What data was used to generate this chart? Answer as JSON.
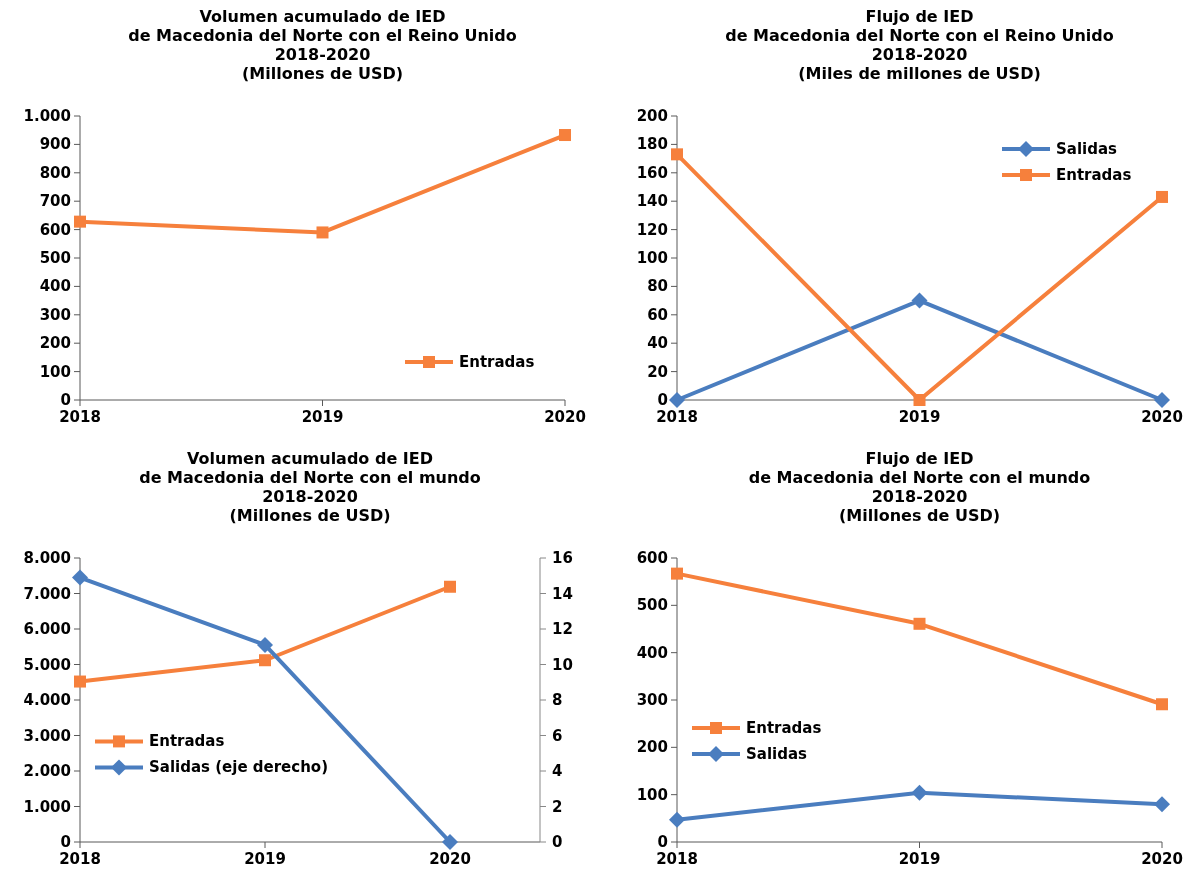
{
  "chart_data": [
    {
      "type": "line",
      "title": "Volumen acumulado de IED\nde Macedonia del Norte con el Reino Unido\n2018-2020\n(Millones de USD)",
      "categories": [
        "2018",
        "2019",
        "2020"
      ],
      "series": [
        {
          "name": "Entradas",
          "color": "#f6803c",
          "marker": "square",
          "values": [
            628,
            590,
            933
          ]
        }
      ],
      "ylim": [
        0,
        1000
      ],
      "yticks": [
        0,
        100,
        200,
        300,
        400,
        500,
        600,
        700,
        800,
        900,
        {
          "value": 1000,
          "label": "1.000"
        }
      ],
      "grid": false,
      "legend": "bottom right"
    },
    {
      "type": "line",
      "title": "Flujo de IED\nde Macedonia del Norte con el Reino Unido\n2018-2020\n(Miles de millones de USD)",
      "categories": [
        "2018",
        "2019",
        "2020"
      ],
      "series": [
        {
          "name": "Salidas",
          "color": "#4a7dbf",
          "marker": "diamond",
          "values": [
            0,
            70,
            0
          ]
        },
        {
          "name": "Entradas",
          "color": "#f6803c",
          "marker": "square",
          "values": [
            173,
            0,
            143
          ]
        }
      ],
      "ylim": [
        0,
        200
      ],
      "yticks": [
        0,
        20,
        40,
        60,
        80,
        100,
        120,
        140,
        160,
        180,
        200
      ],
      "grid": false,
      "legend": "top right"
    },
    {
      "type": "line",
      "title": "Volumen acumulado de IED\nde Macedonia del Norte con el mundo\n2018-2020\n(Millones de USD)",
      "categories": [
        "2018",
        "2019",
        "2020"
      ],
      "series": [
        {
          "name": "Entradas",
          "color": "#f6803c",
          "marker": "square",
          "values": [
            4520,
            5120,
            7190
          ]
        },
        {
          "name": "Salidas (eje derecho)",
          "color": "#4a7dbf",
          "marker": "diamond",
          "axis": "y2",
          "values": [
            14.9,
            11.1,
            0
          ]
        }
      ],
      "ylim": [
        0,
        8000
      ],
      "yticks": [
        0,
        {
          "value": 1000,
          "label": "1.000"
        },
        {
          "value": 2000,
          "label": "2.000"
        },
        {
          "value": 3000,
          "label": "3.000"
        },
        {
          "value": 4000,
          "label": "4.000"
        },
        {
          "value": 5000,
          "label": "5.000"
        },
        {
          "value": 6000,
          "label": "6.000"
        },
        {
          "value": 7000,
          "label": "7.000"
        },
        {
          "value": 8000,
          "label": "8.000"
        }
      ],
      "y2lim": [
        0,
        16
      ],
      "y2ticks": [
        0,
        2,
        4,
        6,
        8,
        10,
        12,
        14,
        16
      ],
      "grid": false,
      "legend": "left"
    },
    {
      "type": "line",
      "title": "Flujo de IED\nde Macedonia del Norte con el mundo\n2018-2020\n(Millones de USD)",
      "categories": [
        "2018",
        "2019",
        "2020"
      ],
      "series": [
        {
          "name": "Entradas",
          "color": "#f6803c",
          "marker": "square",
          "values": [
            567,
            461,
            291
          ]
        },
        {
          "name": "Salidas",
          "color": "#4a7dbf",
          "marker": "diamond",
          "values": [
            47,
            104,
            80
          ]
        }
      ],
      "ylim": [
        0,
        600
      ],
      "yticks": [
        0,
        100,
        200,
        300,
        400,
        500,
        600
      ],
      "grid": false,
      "legend": "bottom left"
    }
  ]
}
